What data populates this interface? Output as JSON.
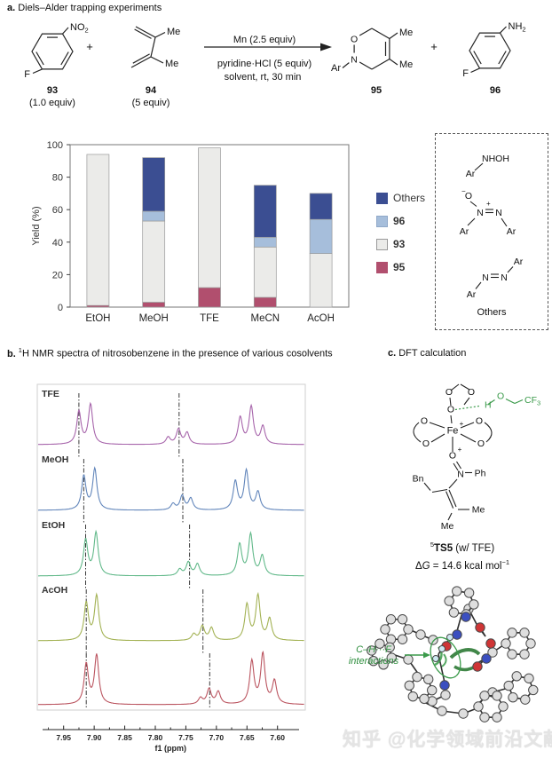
{
  "panel_a": {
    "label": "a.",
    "title": "Diels–Alder trapping experiments",
    "scheme": {
      "compound93": {
        "no": "NO",
        "no_sub": "2",
        "f": "F",
        "id": "93",
        "equiv": "(1.0 equiv)"
      },
      "plus1": "+",
      "compound94": {
        "me_top": "Me",
        "me_bottom": "Me",
        "id": "94",
        "equiv": "(5 equiv)"
      },
      "arrow_above": "Mn (2.5 equiv)",
      "arrow_below_1": "pyridine·HCl (5 equiv)",
      "arrow_below_2": "solvent, rt, 30 min",
      "compound95": {
        "o": "O",
        "n": "N",
        "ar": "Ar",
        "me_top": "Me",
        "me_bottom": "Me",
        "id": "95"
      },
      "plus2": "+",
      "compound96": {
        "nh": "NH",
        "nh_sub": "2",
        "f": "F",
        "id": "96"
      }
    },
    "others_box": {
      "nhoh": "NHOH",
      "ar1": "Ar",
      "azoxy_o": "O",
      "azoxy_minus": "−",
      "azoxy_n1": "N",
      "azoxy_plus": "+",
      "azoxy_n2": "N",
      "azoxy_ar_left": "Ar",
      "azoxy_ar_right": "Ar",
      "azo_n1": "N",
      "azo_n2": "N",
      "azo_ar_top": "Ar",
      "azo_ar_bottom": "Ar",
      "label": "Others"
    }
  },
  "chart_data": [
    {
      "type": "bar",
      "stacked": true,
      "categories": [
        "EtOH",
        "MeOH",
        "TFE",
        "MeCN",
        "AcOH"
      ],
      "series": [
        {
          "name": "95",
          "color": "#b14f6e",
          "values": [
            1,
            3,
            12,
            6,
            0
          ]
        },
        {
          "name": "93",
          "color": "#ebebe9",
          "values": [
            93,
            50,
            86,
            31,
            33
          ]
        },
        {
          "name": "96",
          "color": "#a6bedb",
          "values": [
            0,
            6,
            0,
            6,
            21
          ]
        },
        {
          "name": "Others",
          "color": "#3b4e92",
          "values": [
            0,
            33,
            0,
            32,
            16
          ]
        }
      ],
      "ylabel": "Yield (%)",
      "ylim": [
        0,
        100
      ],
      "yticks": [
        0,
        20,
        40,
        60,
        80,
        100
      ],
      "legend_position": "right",
      "legend": [
        {
          "label": "Others",
          "color": "#3b4e92",
          "border": "#3b4e92",
          "bold": false
        },
        {
          "label": "96",
          "color": "#a6bedb",
          "border": "#8fa8c8",
          "bold": true
        },
        {
          "label": "93",
          "color": "#ebebe9",
          "border": "#999999",
          "bold": true
        },
        {
          "label": "95",
          "color": "#b14f6e",
          "border": "#b14f6e",
          "bold": true
        }
      ]
    },
    {
      "type": "line",
      "subtype": "stacked-nmr",
      "xlabel": "f1 (ppm)",
      "xticks": [
        7.95,
        7.9,
        7.85,
        7.8,
        7.75,
        7.7,
        7.65,
        7.6
      ],
      "x_axis_reversed": true,
      "traces": [
        {
          "label": "TFE",
          "color": "#a765ab",
          "guide_ppm": [
            7.925,
            7.761
          ],
          "peaks": [
            {
              "ppm": 7.925,
              "h": 37
            },
            {
              "ppm": 7.906,
              "h": 45
            },
            {
              "ppm": 7.779,
              "h": 8
            },
            {
              "ppm": 7.762,
              "h": 17
            },
            {
              "ppm": 7.748,
              "h": 13
            },
            {
              "ppm": 7.661,
              "h": 30
            },
            {
              "ppm": 7.643,
              "h": 42
            },
            {
              "ppm": 7.624,
              "h": 20
            }
          ]
        },
        {
          "label": "MeOH",
          "color": "#6286bb",
          "guide_ppm": [
            7.917,
            7.755
          ],
          "peaks": [
            {
              "ppm": 7.917,
              "h": 38
            },
            {
              "ppm": 7.899,
              "h": 46
            },
            {
              "ppm": 7.771,
              "h": 7
            },
            {
              "ppm": 7.756,
              "h": 16
            },
            {
              "ppm": 7.742,
              "h": 13
            },
            {
              "ppm": 7.669,
              "h": 32
            },
            {
              "ppm": 7.651,
              "h": 44
            },
            {
              "ppm": 7.632,
              "h": 20
            }
          ]
        },
        {
          "label": "EtOH",
          "color": "#62b98a",
          "guide_ppm": [
            7.914,
            7.744
          ],
          "peaks": [
            {
              "ppm": 7.914,
              "h": 40
            },
            {
              "ppm": 7.897,
              "h": 48
            },
            {
              "ppm": 7.76,
              "h": 7
            },
            {
              "ppm": 7.746,
              "h": 15
            },
            {
              "ppm": 7.731,
              "h": 13
            },
            {
              "ppm": 7.662,
              "h": 35
            },
            {
              "ppm": 7.644,
              "h": 46
            },
            {
              "ppm": 7.625,
              "h": 22
            }
          ]
        },
        {
          "label": "AcOH",
          "color": "#a3b254",
          "guide_ppm": [
            7.913,
            7.722
          ],
          "peaks": [
            {
              "ppm": 7.913,
              "h": 42
            },
            {
              "ppm": 7.896,
              "h": 50
            },
            {
              "ppm": 7.737,
              "h": 7
            },
            {
              "ppm": 7.723,
              "h": 16
            },
            {
              "ppm": 7.708,
              "h": 14
            },
            {
              "ppm": 7.65,
              "h": 40
            },
            {
              "ppm": 7.632,
              "h": 50
            },
            {
              "ppm": 7.613,
              "h": 24
            }
          ]
        },
        {
          "label": "",
          "color": "#bb5560",
          "guide_ppm": [
            7.913,
            7.711
          ],
          "peaks": [
            {
              "ppm": 7.913,
              "h": 45
            },
            {
              "ppm": 7.896,
              "h": 55
            },
            {
              "ppm": 7.726,
              "h": 7
            },
            {
              "ppm": 7.712,
              "h": 17
            },
            {
              "ppm": 7.697,
              "h": 14
            },
            {
              "ppm": 7.642,
              "h": 48
            },
            {
              "ppm": 7.624,
              "h": 56
            },
            {
              "ppm": 7.605,
              "h": 26
            }
          ]
        }
      ]
    }
  ],
  "panel_b": {
    "label": "b.",
    "title_sup": "1",
    "title_rest": "H NMR spectra of nitrosobenzene in the presence of various cosolvents"
  },
  "panel_c": {
    "label": "c.",
    "title": "DFT calculation",
    "structure": {
      "o_top1": "O",
      "o_top2": "O",
      "o_fe_top": "O",
      "h": "H",
      "o_tfe": "O",
      "cf": "CF",
      "cf_sub": "3",
      "o_l1": "O",
      "o_l2": "O",
      "o_r1": "O",
      "o_r2": "O",
      "fe": "Fe",
      "fe_charge": "+",
      "o_bottom": "O",
      "o_bottom_charge": "+",
      "n": "N",
      "ph": "Ph",
      "bn": "Bn",
      "me1": "Me",
      "me2": "Me"
    },
    "ts_sup": "5",
    "ts_bold": "TS5",
    "ts_rest": " (w/ TFE)",
    "dg_delta": "Δ",
    "dg_g": "G",
    "dg_rest": " = 14.6 kcal mol",
    "dg_sup": "−1",
    "interaction_line1": "C–H···F",
    "interaction_line2": "interactions"
  },
  "watermark": "知乎 @化学领域前沿文献"
}
